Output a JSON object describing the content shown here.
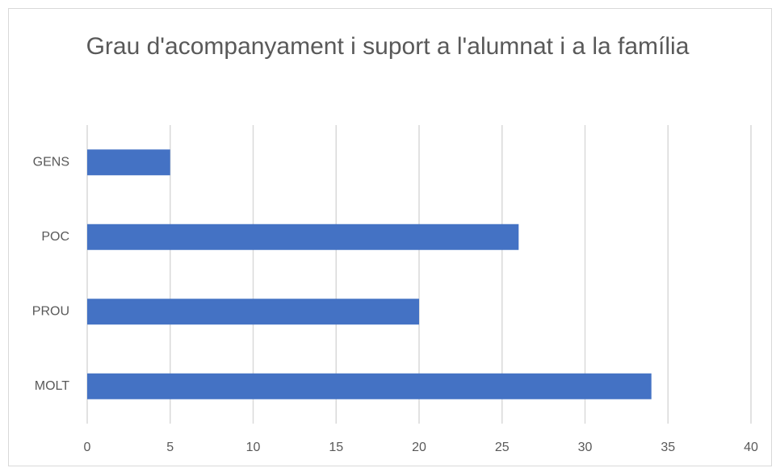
{
  "chart_data": {
    "type": "bar",
    "orientation": "horizontal",
    "title": "Grau d'acompanyament i suport a l'alumnat i a la família",
    "categories": [
      "GENS",
      "POC",
      "PROU",
      "MOLT"
    ],
    "values": [
      5,
      26,
      20,
      34
    ],
    "color": "#4472c4",
    "xlim": [
      0,
      40
    ],
    "xticks": [
      0,
      5,
      10,
      15,
      20,
      25,
      30,
      35,
      40
    ],
    "grid": true
  }
}
